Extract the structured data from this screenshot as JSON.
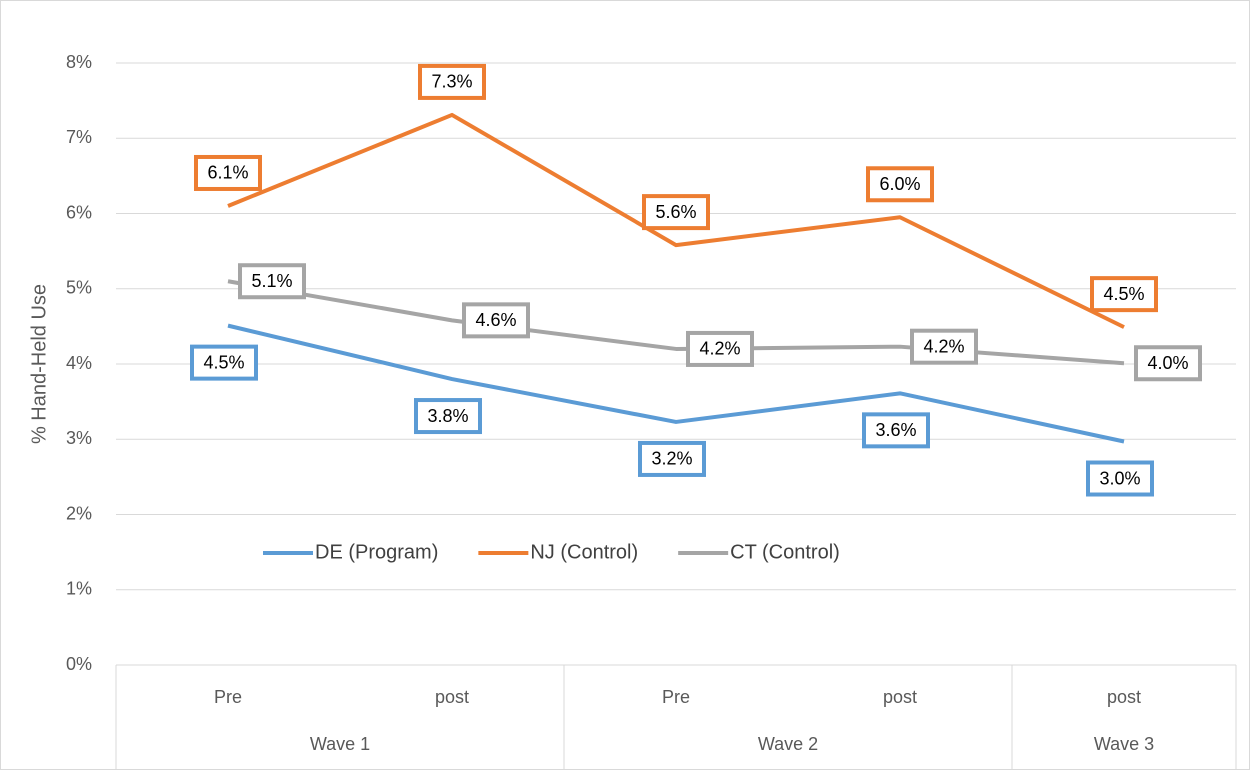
{
  "chart_data": {
    "type": "line",
    "y_label": "% Hand-Held Use",
    "categories": [
      "Pre",
      "post",
      "Pre",
      "post",
      "post"
    ],
    "category_groups": [
      {
        "label": "Wave 1",
        "count": 2
      },
      {
        "label": "Wave 2",
        "count": 2
      },
      {
        "label": "Wave 3",
        "count": 1
      }
    ],
    "series": [
      {
        "name": "DE (Program)",
        "color": "#5b9bd5",
        "values": [
          4.51,
          3.8,
          3.23,
          3.61,
          2.97
        ],
        "value_labels": [
          "4.5%",
          "3.8%",
          "3.2%",
          "3.6%",
          "3.0%"
        ]
      },
      {
        "name": "NJ (Control)",
        "color": "#ed7d31",
        "values": [
          6.1,
          7.31,
          5.58,
          5.95,
          4.49
        ],
        "value_labels": [
          "6.1%",
          "7.3%",
          "5.6%",
          "6.0%",
          "4.5%"
        ]
      },
      {
        "name": "CT (Control)",
        "color": "#a5a5a5",
        "values": [
          5.1,
          4.58,
          4.2,
          4.23,
          4.01
        ],
        "value_labels": [
          "5.1%",
          "4.6%",
          "4.2%",
          "4.2%",
          "4.0%"
        ]
      }
    ],
    "ylim": [
      0,
      8
    ],
    "yticks": [
      {
        "value": 0,
        "label": "0%"
      },
      {
        "value": 1,
        "label": "1%"
      },
      {
        "value": 2,
        "label": "2%"
      },
      {
        "value": 3,
        "label": "3%"
      },
      {
        "value": 4,
        "label": "4%"
      },
      {
        "value": 5,
        "label": "5%"
      },
      {
        "value": 6,
        "label": "6%"
      },
      {
        "value": 7,
        "label": "7%"
      },
      {
        "value": 8,
        "label": "8%"
      }
    ],
    "grid": true,
    "legend": "inside-bottom"
  }
}
